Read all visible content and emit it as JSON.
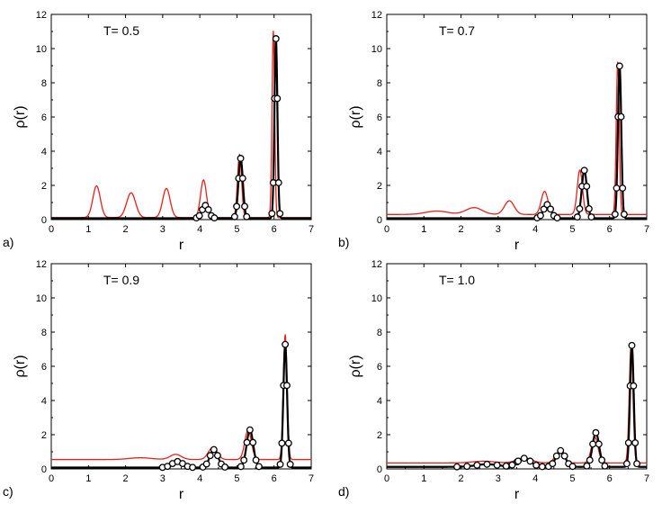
{
  "chart_data": [
    {
      "type": "line",
      "panel_label": "a)",
      "annotation": "T= 0.5",
      "xlabel": "r",
      "ylabel": "ρ(r)",
      "xlim": [
        0,
        7
      ],
      "ylim": [
        0,
        12
      ],
      "xticks": [
        "0",
        "1",
        "2",
        "3",
        "4",
        "5",
        "6",
        "7"
      ],
      "yticks": [
        "0",
        "2",
        "4",
        "6",
        "8",
        "10",
        "12"
      ],
      "series": [
        {
          "style": "red-line",
          "color": "#e8201c",
          "baseline": 0.12,
          "peaks": [
            [
              1.22,
              1.85,
              0.1
            ],
            [
              2.15,
              1.45,
              0.12
            ],
            [
              3.1,
              1.7,
              0.1
            ],
            [
              4.1,
              2.2,
              0.08
            ],
            [
              5.07,
              3.7,
              0.055
            ],
            [
              5.98,
              10.9,
              0.035
            ]
          ]
        },
        {
          "style": "black-line-circles",
          "color": "#000000",
          "baseline": 0.08,
          "peaks": [
            [
              4.15,
              0.75,
              0.09
            ],
            [
              5.1,
              3.5,
              0.06
            ],
            [
              6.05,
              10.5,
              0.04
            ]
          ]
        }
      ]
    },
    {
      "type": "line",
      "panel_label": "b)",
      "annotation": "T= 0.7",
      "xlabel": "r",
      "ylabel": "ρ(r)",
      "xlim": [
        0,
        7
      ],
      "ylim": [
        0,
        12
      ],
      "xticks": [
        "0",
        "1",
        "2",
        "3",
        "4",
        "5",
        "6",
        "7"
      ],
      "yticks": [
        "0",
        "2",
        "4",
        "6",
        "8",
        "10",
        "12"
      ],
      "series": [
        {
          "style": "red-line",
          "color": "#e8201c",
          "baseline": 0.3,
          "peaks": [
            [
              1.35,
              0.2,
              0.3
            ],
            [
              2.35,
              0.4,
              0.22
            ],
            [
              3.3,
              0.8,
              0.13
            ],
            [
              4.25,
              1.35,
              0.09
            ],
            [
              5.2,
              2.6,
              0.07
            ],
            [
              6.22,
              8.9,
              0.04
            ]
          ]
        },
        {
          "style": "black-line-circles",
          "color": "#000000",
          "baseline": 0.08,
          "peaks": [
            [
              4.32,
              0.8,
              0.1
            ],
            [
              5.32,
              2.8,
              0.07
            ],
            [
              6.27,
              8.9,
              0.045
            ]
          ]
        }
      ]
    },
    {
      "type": "line",
      "panel_label": "c)",
      "annotation": "T= 0.9",
      "xlabel": "r",
      "ylabel": "ρ(r)",
      "xlim": [
        0,
        7
      ],
      "ylim": [
        0,
        12
      ],
      "xticks": [
        "0",
        "1",
        "2",
        "3",
        "4",
        "5",
        "6",
        "7"
      ],
      "yticks": [
        "0",
        "2",
        "4",
        "6",
        "8",
        "10",
        "12"
      ],
      "series": [
        {
          "style": "red-line",
          "color": "#e8201c",
          "baseline": 0.55,
          "peaks": [
            [
              2.4,
              0.1,
              0.3
            ],
            [
              3.35,
              0.3,
              0.15
            ],
            [
              4.35,
              0.7,
              0.12
            ],
            [
              5.3,
              1.7,
              0.09
            ],
            [
              6.3,
              7.3,
              0.05
            ]
          ]
        },
        {
          "style": "black-line-circles",
          "color": "#000000",
          "baseline": 0.08,
          "peaks": [
            [
              3.4,
              0.35,
              0.15
            ],
            [
              4.38,
              1.05,
              0.11
            ],
            [
              5.35,
              2.2,
              0.09
            ],
            [
              6.3,
              7.2,
              0.05
            ]
          ]
        }
      ]
    },
    {
      "type": "line",
      "panel_label": "d)",
      "annotation": "T= 1.0",
      "xlabel": "r",
      "ylabel": "ρ(r)",
      "xlim": [
        0,
        7
      ],
      "ylim": [
        0,
        12
      ],
      "xticks": [
        "0",
        "1",
        "2",
        "3",
        "4",
        "5",
        "6",
        "7"
      ],
      "yticks": [
        "0",
        "2",
        "4",
        "6",
        "8",
        "10",
        "12"
      ],
      "series": [
        {
          "style": "red-line",
          "color": "#e8201c",
          "baseline": 0.35,
          "peaks": [
            [
              2.6,
              0.1,
              0.3
            ],
            [
              3.7,
              0.3,
              0.2
            ],
            [
              4.65,
              0.6,
              0.12
            ],
            [
              5.6,
              1.5,
              0.09
            ],
            [
              6.58,
              6.9,
              0.05
            ]
          ]
        },
        {
          "style": "black-line-circles",
          "color": "#000000",
          "baseline": 0.12,
          "peaks": [
            [
              2.7,
              0.15,
              0.3
            ],
            [
              3.7,
              0.5,
              0.18
            ],
            [
              4.68,
              0.95,
              0.12
            ],
            [
              5.63,
              2.0,
              0.09
            ],
            [
              6.6,
              7.1,
              0.05
            ]
          ]
        }
      ]
    }
  ]
}
